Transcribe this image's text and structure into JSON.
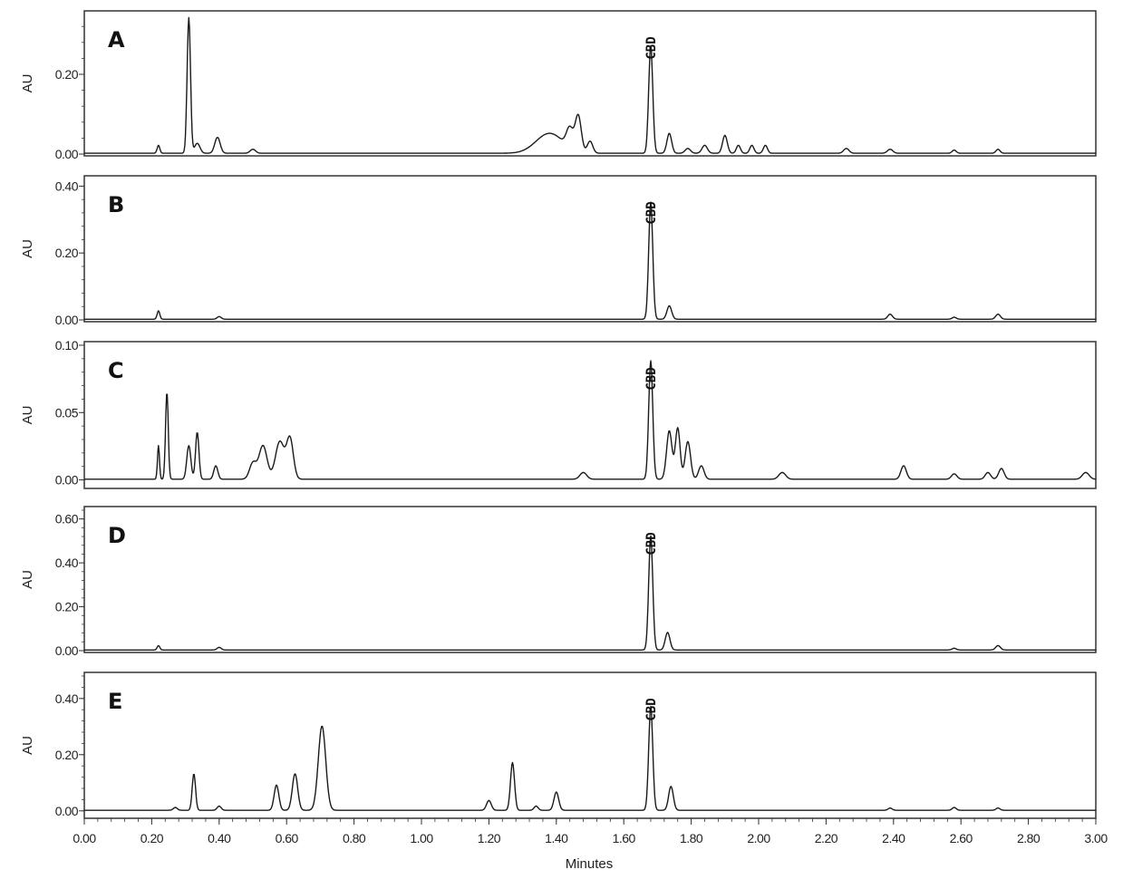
{
  "chart_data": {
    "type": "line",
    "xlabel": "Minutes",
    "x_ticks": [
      "0.00",
      "0.20",
      "0.40",
      "0.60",
      "0.80",
      "1.00",
      "1.20",
      "1.40",
      "1.60",
      "1.80",
      "2.00",
      "2.20",
      "2.40",
      "2.60",
      "2.80",
      "3.00"
    ],
    "xlim": [
      0,
      3.0
    ],
    "panels": [
      {
        "letter": "A",
        "ylabel": "AU",
        "ylim": [
          0,
          0.35
        ],
        "y_ticks": [
          0,
          0.2
        ],
        "y_tick_labels": [
          "0.00",
          "0.20"
        ],
        "peak_label": "CBD",
        "peak_label_x": 1.68,
        "baseline": 0.002,
        "peaks": [
          {
            "x": 0.22,
            "h": 0.02,
            "w": 0.004
          },
          {
            "x": 0.31,
            "h": 0.34,
            "w": 0.005
          },
          {
            "x": 0.335,
            "h": 0.025,
            "w": 0.008
          },
          {
            "x": 0.395,
            "h": 0.04,
            "w": 0.008
          },
          {
            "x": 0.5,
            "h": 0.01,
            "w": 0.008
          },
          {
            "x": 1.38,
            "h": 0.05,
            "w": 0.04
          },
          {
            "x": 1.44,
            "h": 0.05,
            "w": 0.01
          },
          {
            "x": 1.465,
            "h": 0.09,
            "w": 0.009
          },
          {
            "x": 1.5,
            "h": 0.03,
            "w": 0.008
          },
          {
            "x": 1.68,
            "h": 0.27,
            "w": 0.006
          },
          {
            "x": 1.735,
            "h": 0.05,
            "w": 0.007
          },
          {
            "x": 1.79,
            "h": 0.012,
            "w": 0.008
          },
          {
            "x": 1.84,
            "h": 0.02,
            "w": 0.008
          },
          {
            "x": 1.9,
            "h": 0.045,
            "w": 0.007
          },
          {
            "x": 1.94,
            "h": 0.02,
            "w": 0.006
          },
          {
            "x": 1.98,
            "h": 0.02,
            "w": 0.006
          },
          {
            "x": 2.02,
            "h": 0.02,
            "w": 0.006
          },
          {
            "x": 2.26,
            "h": 0.012,
            "w": 0.008
          },
          {
            "x": 2.39,
            "h": 0.01,
            "w": 0.008
          },
          {
            "x": 2.58,
            "h": 0.008,
            "w": 0.006
          },
          {
            "x": 2.71,
            "h": 0.01,
            "w": 0.006
          }
        ]
      },
      {
        "letter": "B",
        "ylabel": "AU",
        "ylim": [
          0,
          0.42
        ],
        "y_ticks": [
          0,
          0.2,
          0.4
        ],
        "y_tick_labels": [
          "0.00",
          "0.20",
          "0.40"
        ],
        "peak_label": "CBD",
        "peak_label_x": 1.68,
        "baseline": 0.002,
        "peaks": [
          {
            "x": 0.22,
            "h": 0.025,
            "w": 0.004
          },
          {
            "x": 0.4,
            "h": 0.008,
            "w": 0.006
          },
          {
            "x": 1.68,
            "h": 0.35,
            "w": 0.006
          },
          {
            "x": 1.735,
            "h": 0.04,
            "w": 0.007
          },
          {
            "x": 2.39,
            "h": 0.015,
            "w": 0.007
          },
          {
            "x": 2.58,
            "h": 0.006,
            "w": 0.006
          },
          {
            "x": 2.71,
            "h": 0.015,
            "w": 0.007
          }
        ]
      },
      {
        "letter": "C",
        "ylabel": "AU",
        "ylim": [
          -0.005,
          0.1
        ],
        "y_ticks": [
          0,
          0.05,
          0.1
        ],
        "y_tick_labels": [
          "0.00",
          "0.05",
          "0.10"
        ],
        "peak_label": "CBD",
        "peak_label_x": 1.68,
        "baseline": 0.0005,
        "peaks": [
          {
            "x": 0.22,
            "h": 0.025,
            "w": 0.003
          },
          {
            "x": 0.245,
            "h": 0.065,
            "w": 0.004
          },
          {
            "x": 0.31,
            "h": 0.025,
            "w": 0.006
          },
          {
            "x": 0.335,
            "h": 0.035,
            "w": 0.005
          },
          {
            "x": 0.39,
            "h": 0.01,
            "w": 0.006
          },
          {
            "x": 0.5,
            "h": 0.012,
            "w": 0.01
          },
          {
            "x": 0.53,
            "h": 0.025,
            "w": 0.012
          },
          {
            "x": 0.58,
            "h": 0.028,
            "w": 0.013
          },
          {
            "x": 0.61,
            "h": 0.03,
            "w": 0.01
          },
          {
            "x": 1.48,
            "h": 0.005,
            "w": 0.01
          },
          {
            "x": 1.68,
            "h": 0.088,
            "w": 0.006
          },
          {
            "x": 1.735,
            "h": 0.036,
            "w": 0.008
          },
          {
            "x": 1.76,
            "h": 0.038,
            "w": 0.007
          },
          {
            "x": 1.79,
            "h": 0.028,
            "w": 0.008
          },
          {
            "x": 1.83,
            "h": 0.01,
            "w": 0.008
          },
          {
            "x": 2.07,
            "h": 0.005,
            "w": 0.01
          },
          {
            "x": 2.43,
            "h": 0.01,
            "w": 0.008
          },
          {
            "x": 2.58,
            "h": 0.004,
            "w": 0.008
          },
          {
            "x": 2.68,
            "h": 0.005,
            "w": 0.008
          },
          {
            "x": 2.72,
            "h": 0.008,
            "w": 0.008
          },
          {
            "x": 2.97,
            "h": 0.005,
            "w": 0.01
          }
        ]
      },
      {
        "letter": "D",
        "ylabel": "AU",
        "ylim": [
          0,
          0.64
        ],
        "y_ticks": [
          0,
          0.2,
          0.4,
          0.6
        ],
        "y_tick_labels": [
          "0.00",
          "0.20",
          "0.40",
          "0.60"
        ],
        "peak_label": "CBD",
        "peak_label_x": 1.68,
        "baseline": 0.003,
        "peaks": [
          {
            "x": 0.22,
            "h": 0.02,
            "w": 0.004
          },
          {
            "x": 0.4,
            "h": 0.012,
            "w": 0.006
          },
          {
            "x": 1.68,
            "h": 0.52,
            "w": 0.006
          },
          {
            "x": 1.73,
            "h": 0.08,
            "w": 0.007
          },
          {
            "x": 2.58,
            "h": 0.008,
            "w": 0.006
          },
          {
            "x": 2.71,
            "h": 0.02,
            "w": 0.007
          }
        ]
      },
      {
        "letter": "E",
        "ylabel": "AU",
        "ylim": [
          -0.02,
          0.48
        ],
        "y_ticks": [
          0,
          0.2,
          0.4
        ],
        "y_tick_labels": [
          "0.00",
          "0.20",
          "0.40"
        ],
        "peak_label": "CBD",
        "peak_label_x": 1.68,
        "baseline": 0.002,
        "peaks": [
          {
            "x": 0.27,
            "h": 0.01,
            "w": 0.006
          },
          {
            "x": 0.325,
            "h": 0.13,
            "w": 0.005
          },
          {
            "x": 0.4,
            "h": 0.015,
            "w": 0.006
          },
          {
            "x": 0.57,
            "h": 0.09,
            "w": 0.007
          },
          {
            "x": 0.625,
            "h": 0.13,
            "w": 0.008
          },
          {
            "x": 0.705,
            "h": 0.3,
            "w": 0.011
          },
          {
            "x": 1.2,
            "h": 0.035,
            "w": 0.007
          },
          {
            "x": 1.27,
            "h": 0.17,
            "w": 0.006
          },
          {
            "x": 1.34,
            "h": 0.015,
            "w": 0.006
          },
          {
            "x": 1.4,
            "h": 0.065,
            "w": 0.007
          },
          {
            "x": 1.68,
            "h": 0.37,
            "w": 0.006
          },
          {
            "x": 1.74,
            "h": 0.085,
            "w": 0.007
          },
          {
            "x": 2.39,
            "h": 0.008,
            "w": 0.006
          },
          {
            "x": 2.58,
            "h": 0.01,
            "w": 0.006
          },
          {
            "x": 2.71,
            "h": 0.008,
            "w": 0.006
          }
        ]
      }
    ]
  }
}
